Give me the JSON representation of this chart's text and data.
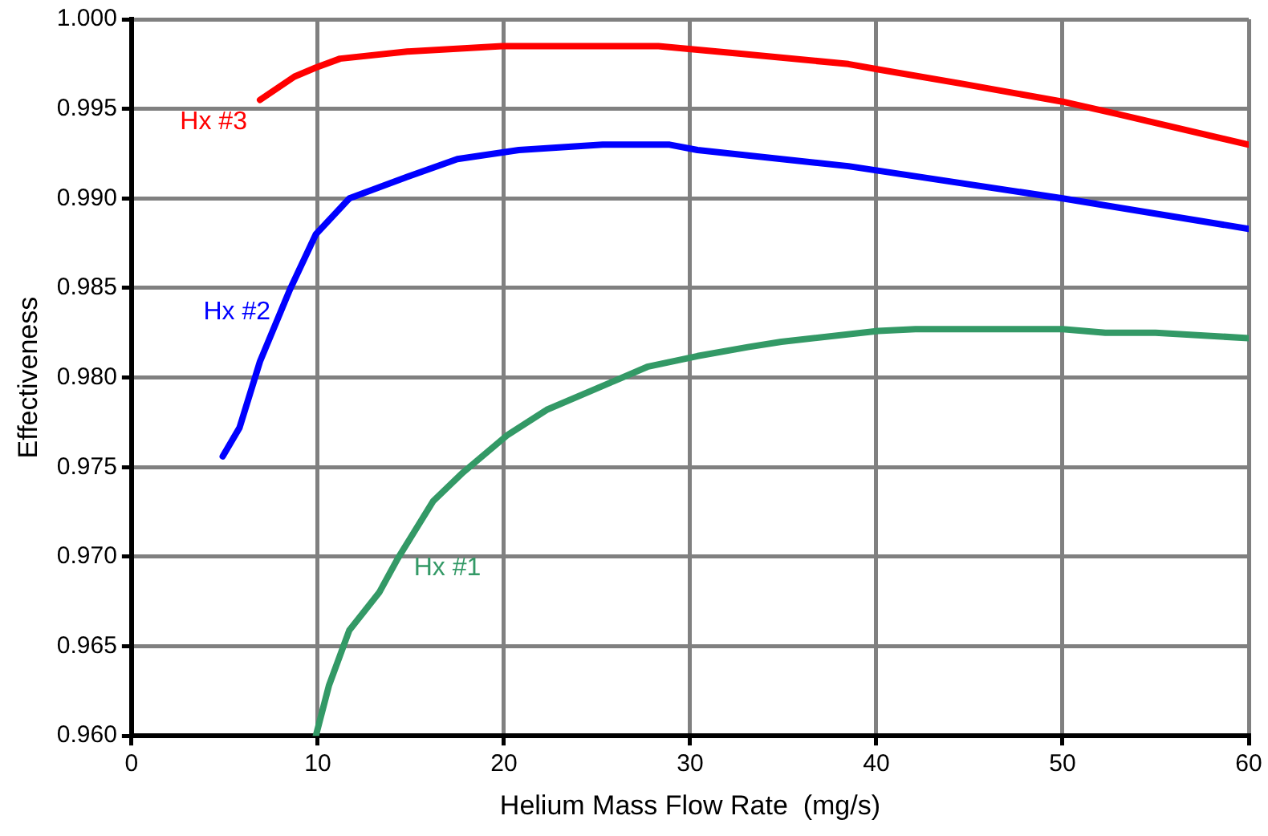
{
  "chart_data": {
    "type": "line",
    "xlabel": "Helium Mass Flow Rate  (mg/s)",
    "ylabel": "Effectiveness",
    "xlim": [
      0,
      60
    ],
    "xticks": [
      0,
      10,
      20,
      30,
      40,
      50,
      60
    ],
    "ylim": [
      0.96,
      1.0
    ],
    "yticks": [
      {
        "value": 0.96,
        "label": "0.960"
      },
      0.965,
      {
        "value": 0.97,
        "label": "0.970"
      },
      0.975,
      {
        "value": 0.98,
        "label": "0.980"
      },
      0.985,
      {
        "value": 0.99,
        "label": "0.990"
      },
      0.995,
      {
        "value": 1.0,
        "label": "1.000"
      }
    ],
    "grid": true,
    "legend": false,
    "series": [
      {
        "name": "Hx #1",
        "color": "#339966",
        "x": [
          9.9,
          10.6,
          11.7,
          13.3,
          14.3,
          16.2,
          17.8,
          20.2,
          22.3,
          25.9,
          27.7,
          30.4,
          33.1,
          34.9,
          40.1,
          42.1,
          50,
          52.3,
          55,
          60
        ],
        "values": [
          0.96,
          0.9628,
          0.9659,
          0.968,
          0.9699,
          0.9731,
          0.9747,
          0.9768,
          0.9782,
          0.9798,
          0.9806,
          0.9812,
          0.9817,
          0.982,
          0.9826,
          0.9827,
          0.9827,
          0.9825,
          0.9825,
          0.9822
        ]
      },
      {
        "name": "Hx #2",
        "color": "#0000ff",
        "x": [
          4.9,
          5.8,
          6.9,
          8.5,
          9.9,
          11.7,
          14.8,
          17.5,
          20.8,
          25.3,
          28.9,
          30.4,
          38.5,
          50,
          60
        ],
        "values": [
          0.9756,
          0.9772,
          0.9809,
          0.9849,
          0.988,
          0.99,
          0.9912,
          0.9922,
          0.9927,
          0.993,
          0.993,
          0.9927,
          0.9918,
          0.99,
          0.9883
        ]
      },
      {
        "name": "Hx #3",
        "color": "#ff0000",
        "x": [
          6.9,
          8.75,
          9.9,
          11.2,
          14.8,
          19.9,
          28.3,
          30.4,
          32.5,
          38.5,
          40.1,
          44.6,
          50,
          53,
          60
        ],
        "values": [
          0.9955,
          0.9968,
          0.9973,
          0.9978,
          0.9982,
          0.9985,
          0.9985,
          0.9983,
          0.9981,
          0.9975,
          0.9972,
          0.9964,
          0.9954,
          0.9947,
          0.993
        ]
      }
    ]
  }
}
